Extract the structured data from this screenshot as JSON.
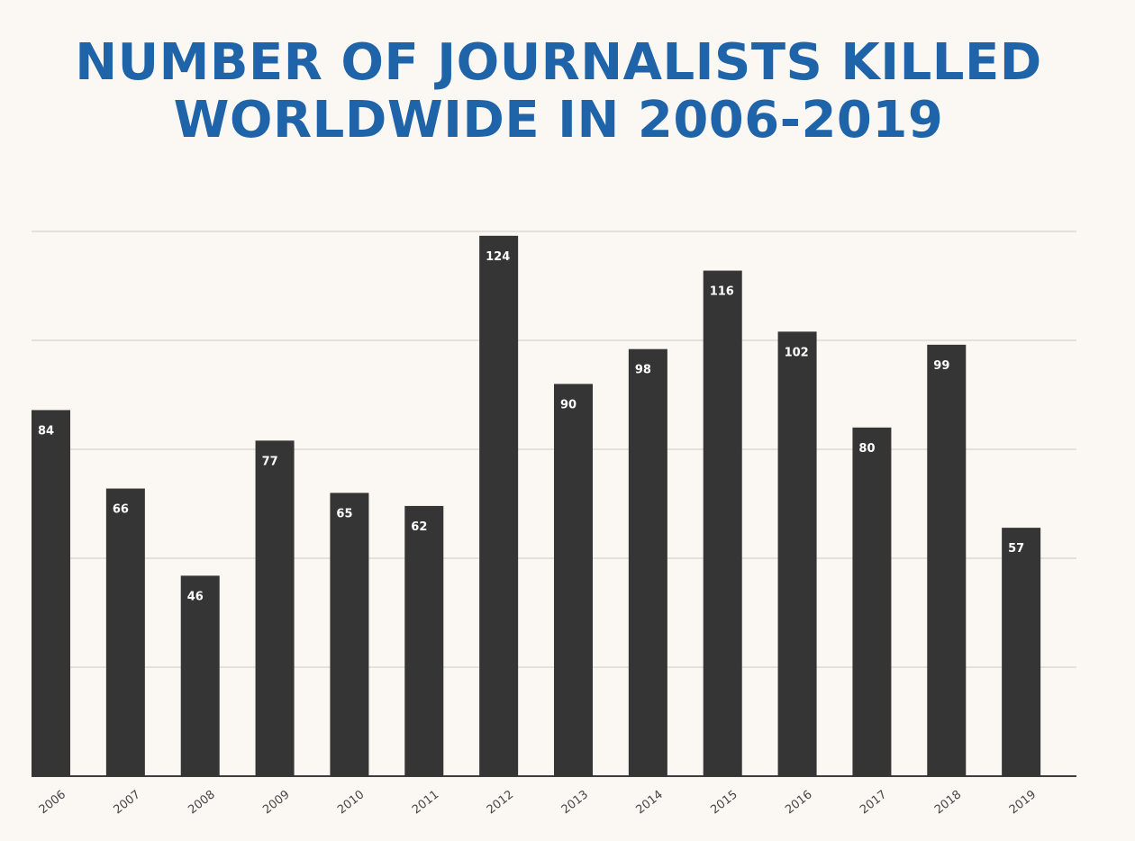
{
  "header": {
    "title_line1": "NUMBER OF JOURNALISTS KILLED",
    "title_line2": "WORLDWIDE IN 2006-2019"
  },
  "chart_data": {
    "type": "bar",
    "title": "NUMBER OF JOURNALISTS KILLED WORLDWIDE IN 2006-2019",
    "xlabel": "",
    "ylabel": "",
    "categories": [
      "2006",
      "2007",
      "2008",
      "2009",
      "2010",
      "2011",
      "2012",
      "2013",
      "2014",
      "2015",
      "2016",
      "2017",
      "2018",
      "2019"
    ],
    "values": [
      84,
      66,
      46,
      77,
      65,
      62,
      124,
      90,
      98,
      116,
      102,
      80,
      99,
      57
    ],
    "ylim": [
      0,
      125
    ],
    "grid": true,
    "gridlines": [
      25,
      50,
      75,
      100,
      125
    ],
    "bar_color": "#353535",
    "label_color": "#ffffff",
    "title_color": "#1f63a8",
    "legend": "none"
  }
}
